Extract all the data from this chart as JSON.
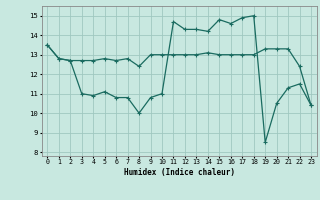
{
  "xlabel": "Humidex (Indice chaleur)",
  "bg_color": "#c8e8e0",
  "grid_color": "#a0c8c0",
  "line_color": "#1a6b60",
  "xlim": [
    -0.5,
    23.5
  ],
  "ylim": [
    7.8,
    15.5
  ],
  "xticks": [
    0,
    1,
    2,
    3,
    4,
    5,
    6,
    7,
    8,
    9,
    10,
    11,
    12,
    13,
    14,
    15,
    16,
    17,
    18,
    19,
    20,
    21,
    22,
    23
  ],
  "yticks": [
    8,
    9,
    10,
    11,
    12,
    13,
    14,
    15
  ],
  "line1_x": [
    0,
    1,
    2,
    3,
    4,
    5,
    6,
    7,
    8,
    9,
    10,
    11,
    12,
    13,
    14,
    15,
    16,
    17,
    18,
    19,
    20,
    21,
    22,
    23
  ],
  "line1_y": [
    13.5,
    12.8,
    12.7,
    12.7,
    12.7,
    12.8,
    12.7,
    12.8,
    12.4,
    13.0,
    13.0,
    13.0,
    13.0,
    13.0,
    13.1,
    13.0,
    13.0,
    13.0,
    13.0,
    13.3,
    13.3,
    13.3,
    12.4,
    10.4
  ],
  "line2_x": [
    0,
    1,
    2,
    3,
    4,
    5,
    6,
    7,
    8,
    9,
    10,
    11,
    12,
    13,
    14,
    15,
    16,
    17,
    18,
    19,
    20,
    21,
    22,
    23
  ],
  "line2_y": [
    13.5,
    12.8,
    12.7,
    11.0,
    10.9,
    11.1,
    10.8,
    10.8,
    10.0,
    10.8,
    11.0,
    14.7,
    14.3,
    14.3,
    14.2,
    14.8,
    14.6,
    14.9,
    15.0,
    8.5,
    10.5,
    11.3,
    11.5,
    10.4
  ]
}
